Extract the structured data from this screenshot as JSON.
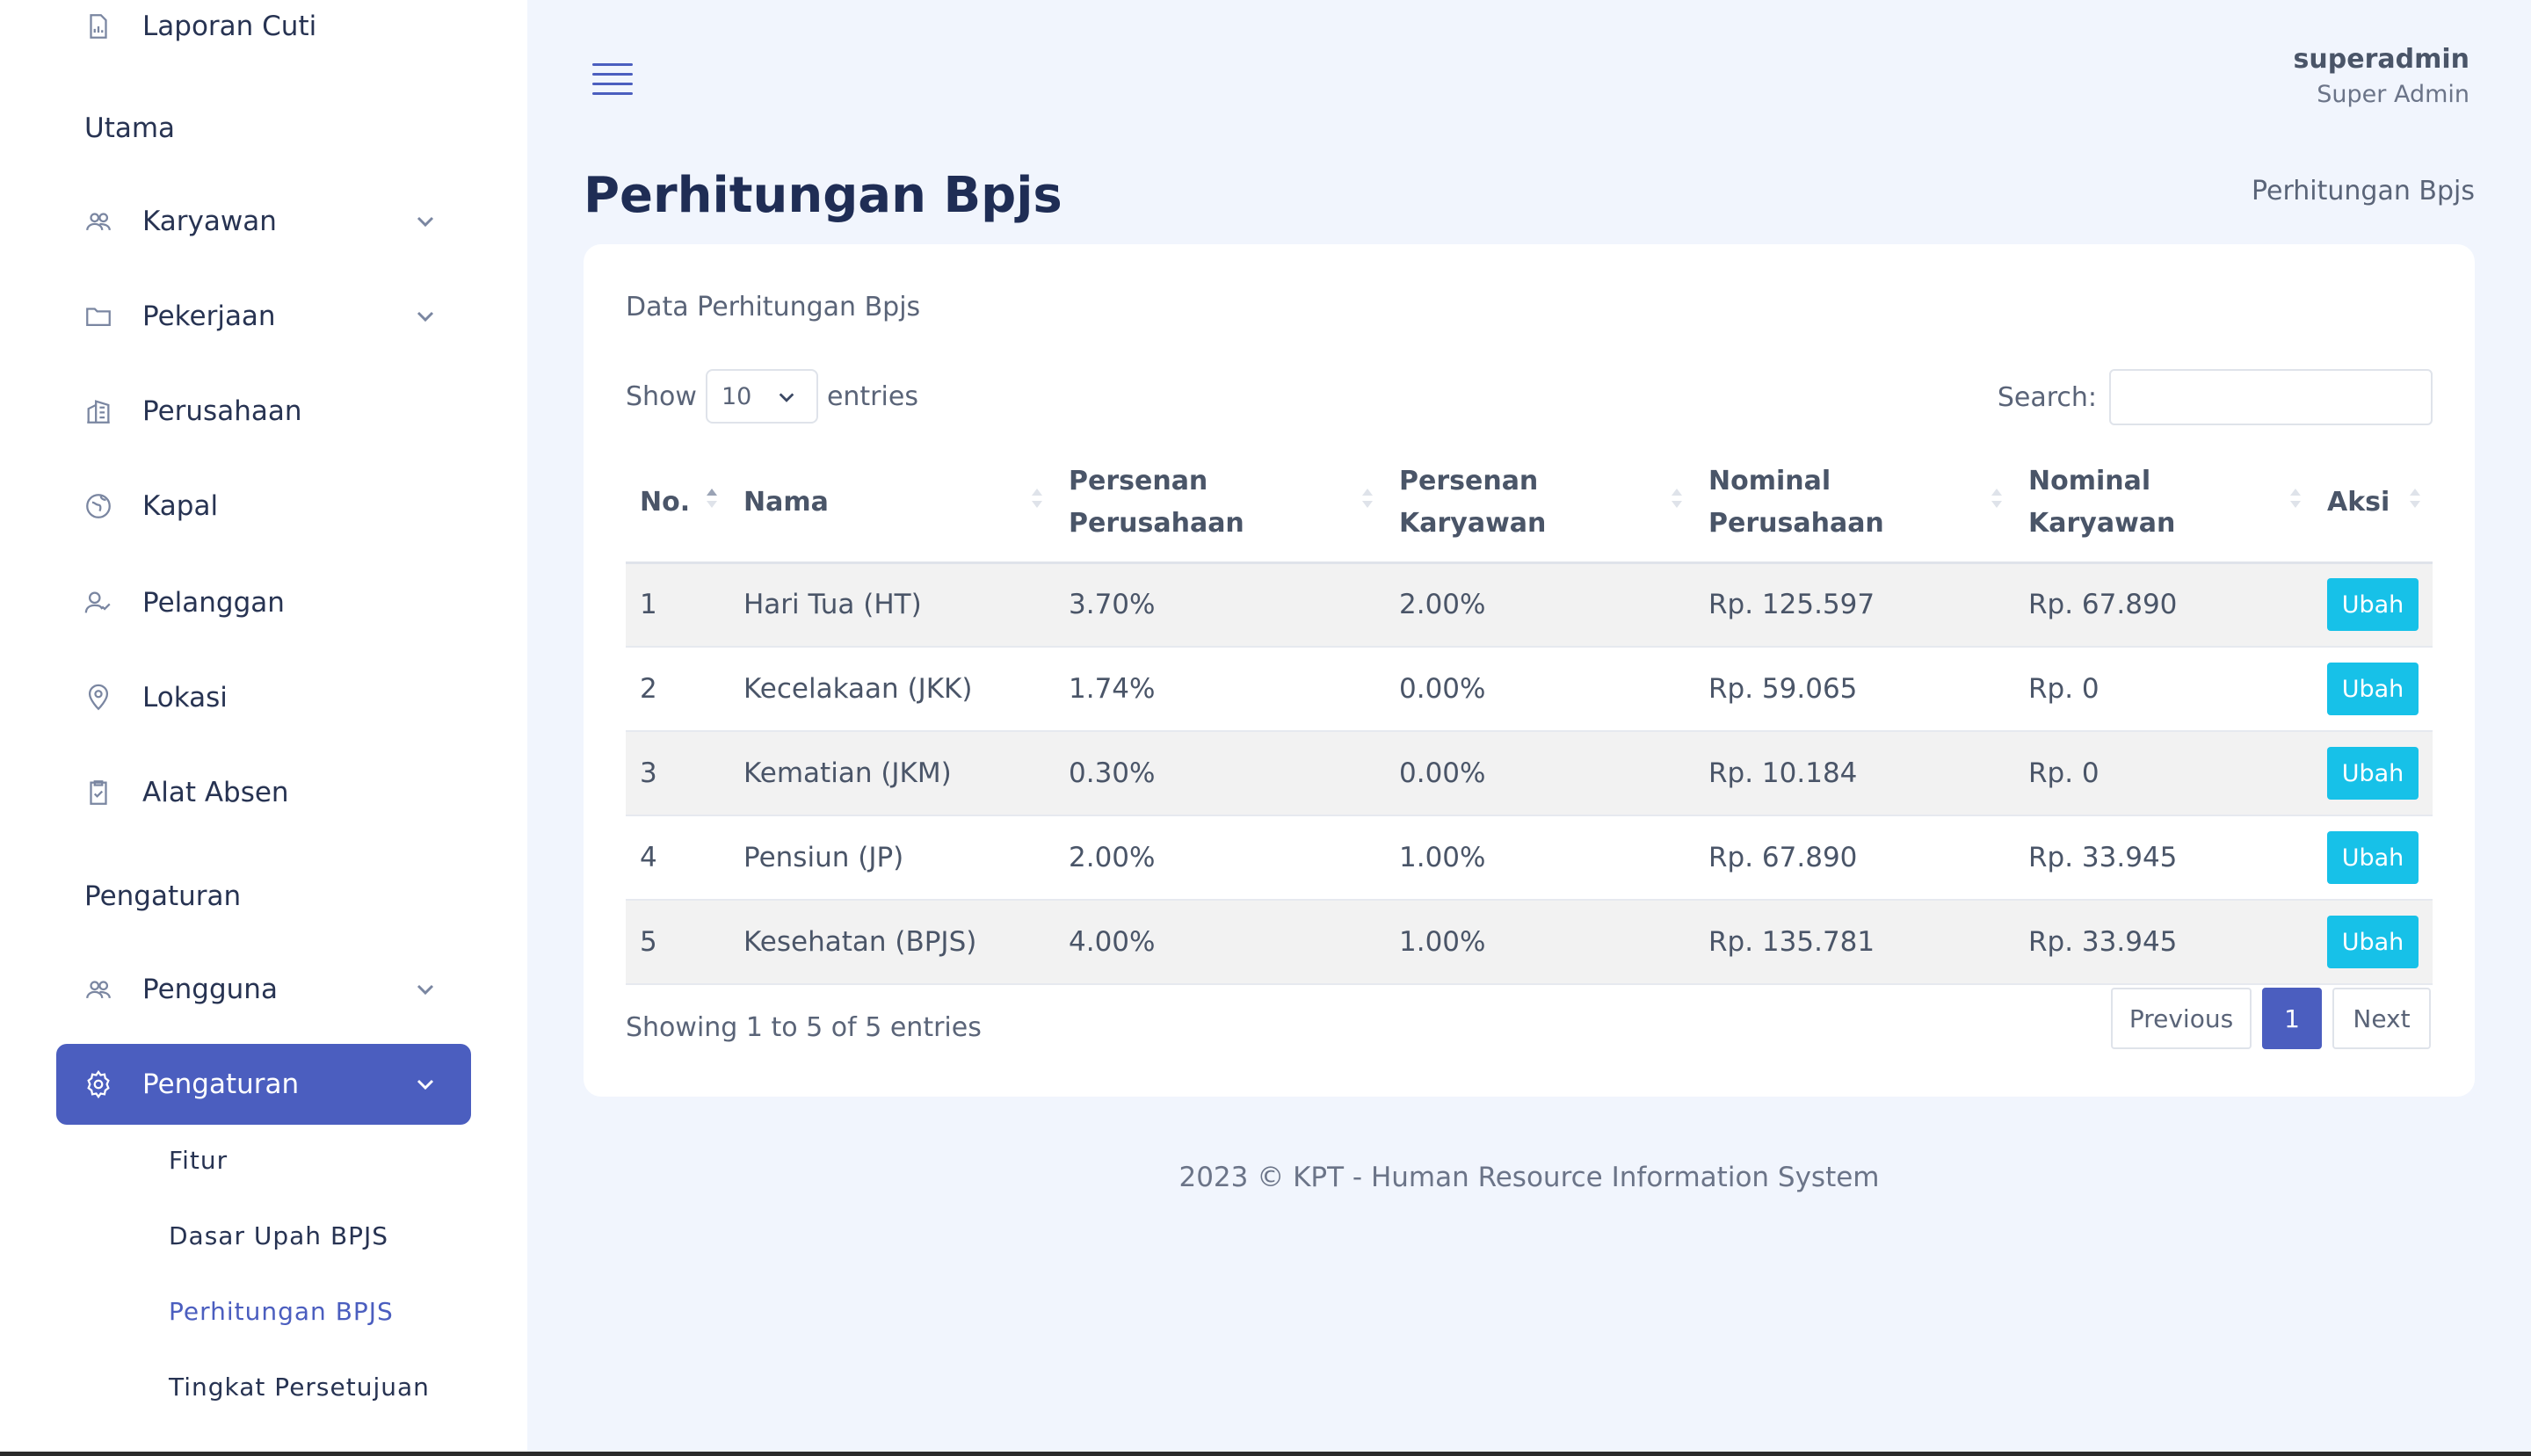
{
  "sidebar": {
    "top_item": "Laporan Cuti",
    "section_main": "Utama",
    "items": [
      {
        "label": "Karyawan"
      },
      {
        "label": "Pekerjaan"
      },
      {
        "label": "Perusahaan"
      },
      {
        "label": "Kapal"
      },
      {
        "label": "Pelanggan"
      },
      {
        "label": "Lokasi"
      },
      {
        "label": "Alat Absen"
      }
    ],
    "section_settings": "Pengaturan",
    "pengguna": "Pengguna",
    "pengaturan": "Pengaturan",
    "sub_items": [
      {
        "label": "Fitur"
      },
      {
        "label": "Dasar Upah BPJS"
      },
      {
        "label": "Perhitungan BPJS"
      },
      {
        "label": "Tingkat Persetujuan"
      }
    ]
  },
  "header": {
    "username": "superadmin",
    "role": "Super Admin"
  },
  "page": {
    "title": "Perhitungan Bpjs",
    "breadcrumb": "Perhitungan Bpjs"
  },
  "card": {
    "title": "Data Perhitungan Bpjs",
    "show_label": "Show",
    "entries_value": "10",
    "entries_label": "entries",
    "search_label": "Search:",
    "search_value": ""
  },
  "table": {
    "headers": {
      "no": "No.",
      "nama": "Nama",
      "persen_perusahaan_1": "Persenan",
      "persen_perusahaan_2": "Perusahaan",
      "persen_karyawan_1": "Persenan",
      "persen_karyawan_2": "Karyawan",
      "nominal_perusahaan_1": "Nominal",
      "nominal_perusahaan_2": "Perusahaan",
      "nominal_karyawan_1": "Nominal",
      "nominal_karyawan_2": "Karyawan",
      "aksi": "Aksi"
    },
    "rows": [
      {
        "no": "1",
        "nama": "Hari Tua (HT)",
        "pp": "3.70%",
        "pk": "2.00%",
        "np": "Rp. 125.597",
        "nk": "Rp. 67.890",
        "action": "Ubah"
      },
      {
        "no": "2",
        "nama": "Kecelakaan (JKK)",
        "pp": "1.74%",
        "pk": "0.00%",
        "np": "Rp. 59.065",
        "nk": "Rp. 0",
        "action": "Ubah"
      },
      {
        "no": "3",
        "nama": "Kematian (JKM)",
        "pp": "0.30%",
        "pk": "0.00%",
        "np": "Rp. 10.184",
        "nk": "Rp. 0",
        "action": "Ubah"
      },
      {
        "no": "4",
        "nama": "Pensiun (JP)",
        "pp": "2.00%",
        "pk": "1.00%",
        "np": "Rp. 67.890",
        "nk": "Rp. 33.945",
        "action": "Ubah"
      },
      {
        "no": "5",
        "nama": "Kesehatan (BPJS)",
        "pp": "4.00%",
        "pk": "1.00%",
        "np": "Rp. 135.781",
        "nk": "Rp. 33.945",
        "action": "Ubah"
      }
    ]
  },
  "pagination": {
    "info": "Showing 1 to 5 of 5 entries",
    "previous": "Previous",
    "current": "1",
    "next": "Next"
  },
  "footer": "2023 © KPT - Human Resource Information System",
  "colors": {
    "accent": "#4b5ebf",
    "button": "#17c1e8",
    "background": "#f1f5fd"
  }
}
